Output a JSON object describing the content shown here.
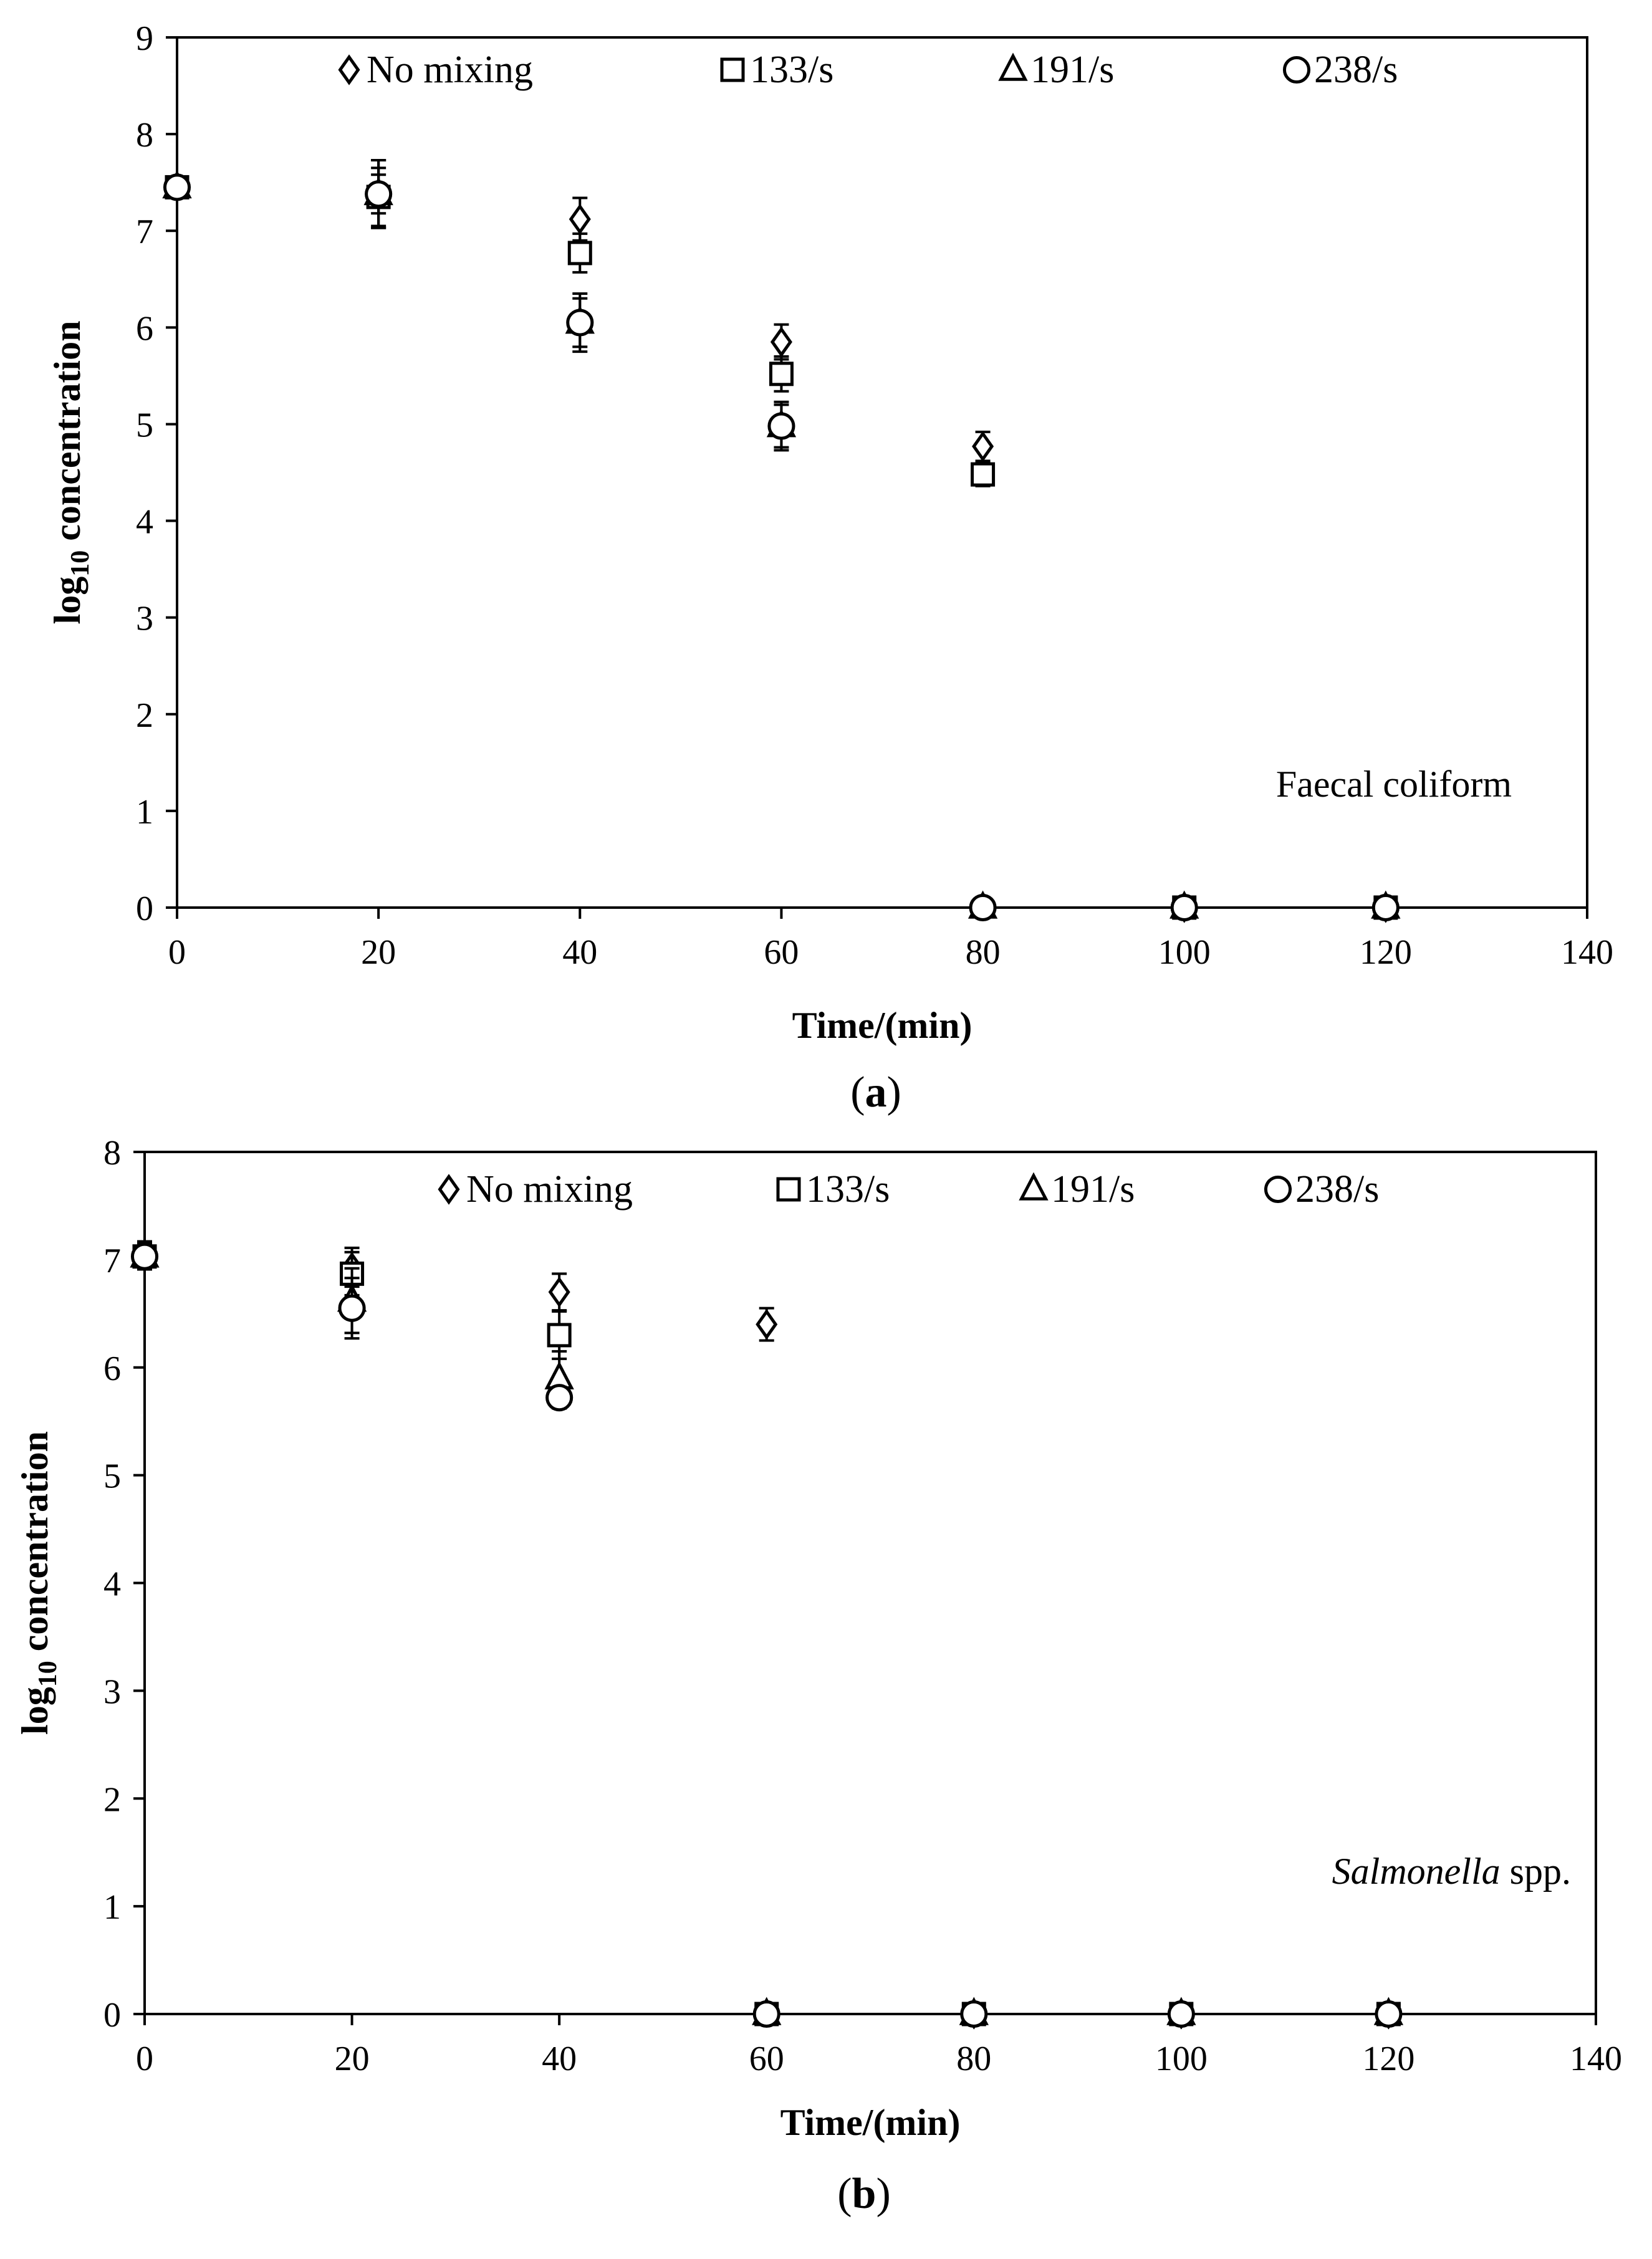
{
  "chart_data": [
    {
      "type": "scatter",
      "panel_label": "a",
      "annotation": "Faecal coliform",
      "xlabel": "Time/(min)",
      "ylabel_main": "log",
      "ylabel_sub": "10",
      "ylabel_rest": " concentration",
      "xlim": [
        0,
        140
      ],
      "ylim": [
        0,
        9
      ],
      "xticks": [
        0,
        20,
        40,
        60,
        80,
        100,
        120,
        140
      ],
      "yticks": [
        0,
        1,
        2,
        3,
        4,
        5,
        6,
        7,
        8,
        9
      ],
      "series": [
        {
          "name": "No mixing",
          "marker": "diamond",
          "x": [
            0,
            20,
            40,
            60,
            80,
            100,
            120
          ],
          "y": [
            7.45,
            7.38,
            7.12,
            5.85,
            4.77,
            0,
            0
          ],
          "err": [
            0.1,
            0.35,
            0.22,
            0.18,
            0.15,
            0,
            0
          ]
        },
        {
          "name": "133/s",
          "marker": "square",
          "x": [
            0,
            20,
            40,
            60,
            80,
            100,
            120
          ],
          "y": [
            7.45,
            7.35,
            6.77,
            5.52,
            4.48,
            0,
            0
          ],
          "err": [
            0.1,
            0.3,
            0.2,
            0.18,
            0.12,
            0,
            0
          ]
        },
        {
          "name": "191/s",
          "marker": "triangle",
          "x": [
            0,
            20,
            40,
            60,
            80,
            100,
            120
          ],
          "y": [
            7.45,
            7.38,
            6.05,
            4.98,
            0,
            0,
            0
          ],
          "err": [
            0.1,
            0.35,
            0.3,
            0.25,
            0,
            0,
            0
          ]
        },
        {
          "name": "238/s",
          "marker": "circle",
          "x": [
            0,
            20,
            40,
            60,
            80,
            100,
            120
          ],
          "y": [
            7.45,
            7.38,
            6.05,
            4.98,
            0,
            0,
            0
          ],
          "err": [
            0.1,
            0.2,
            0.25,
            0.22,
            0,
            0,
            0
          ]
        }
      ]
    },
    {
      "type": "scatter",
      "panel_label": "b",
      "annotation_italic": "Salmonella",
      "annotation_rest": " spp.",
      "xlabel": "Time/(min)",
      "ylabel_main": "log",
      "ylabel_sub": "10",
      "ylabel_rest": " concentration",
      "xlim": [
        0,
        140
      ],
      "ylim": [
        0,
        8
      ],
      "xticks": [
        0,
        20,
        40,
        60,
        80,
        100,
        120,
        140
      ],
      "yticks": [
        0,
        1,
        2,
        3,
        4,
        5,
        6,
        7,
        8
      ],
      "series": [
        {
          "name": "No mixing",
          "marker": "diamond",
          "x": [
            0,
            20,
            40,
            60,
            80,
            100,
            120
          ],
          "y": [
            7.05,
            6.93,
            6.7,
            6.4,
            0,
            0,
            0
          ],
          "err": [
            0.12,
            0.18,
            0.17,
            0.15,
            0,
            0,
            0
          ]
        },
        {
          "name": "133/s",
          "marker": "square",
          "x": [
            0,
            20,
            40,
            60,
            80,
            100,
            120
          ],
          "y": [
            7.03,
            6.87,
            6.3,
            0,
            0,
            0,
            0
          ],
          "err": [
            0.12,
            0.2,
            0.22,
            0,
            0,
            0,
            0
          ]
        },
        {
          "name": "191/s",
          "marker": "triangle",
          "x": [
            0,
            20,
            40,
            60,
            80,
            100,
            120
          ],
          "y": [
            7.03,
            6.62,
            5.9,
            0,
            0,
            0,
            0
          ],
          "err": [
            0.12,
            0.3,
            0.25,
            0,
            0,
            0,
            0
          ]
        },
        {
          "name": "238/s",
          "marker": "circle",
          "x": [
            0,
            20,
            40,
            60,
            80,
            100,
            120
          ],
          "y": [
            7.03,
            6.55,
            5.72,
            0,
            0,
            0,
            0
          ],
          "err": [
            0.1,
            0.28,
            0.1,
            0,
            0,
            0,
            0
          ]
        }
      ]
    }
  ]
}
